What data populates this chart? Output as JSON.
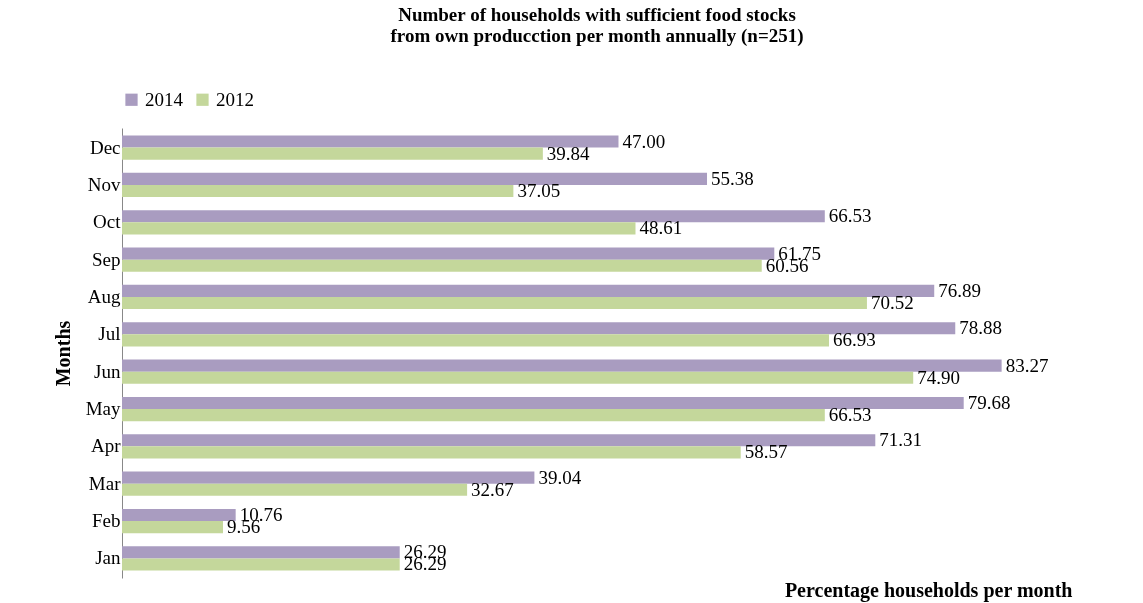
{
  "chart_data": {
    "type": "bar",
    "orientation": "horizontal",
    "title": "Number of households with sufficient food stocks from own producction per month annually (n=251)",
    "xlabel": "Percentage households per month",
    "ylabel": "Months",
    "categories": [
      "Dec",
      "Nov",
      "Oct",
      "Sep",
      "Aug",
      "Jul",
      "Jun",
      "May",
      "Apr",
      "Mar",
      "Feb",
      "Jan"
    ],
    "series": [
      {
        "name": "2014",
        "color": "#a99cc0",
        "values": [
          47.0,
          55.38,
          66.53,
          61.75,
          76.89,
          78.88,
          83.27,
          79.68,
          71.31,
          39.04,
          10.76,
          26.29
        ],
        "value_labels": [
          "47.00",
          "55.38",
          "66.53",
          "61.75",
          "76.89",
          "78.88",
          "83.27",
          "79.68",
          "71.31",
          "39.04",
          "10.76",
          "26.29"
        ]
      },
      {
        "name": "2012",
        "color": "#c4d79b",
        "values": [
          39.84,
          37.05,
          48.61,
          60.56,
          70.52,
          66.93,
          74.9,
          66.53,
          58.57,
          32.67,
          9.56,
          26.29
        ],
        "value_labels": [
          "39.84",
          "37.05",
          "48.61",
          "60.56",
          "70.52",
          "66.93",
          "74.90",
          "66.53",
          "58.57",
          "32.67",
          "9.56",
          "26.29"
        ]
      }
    ],
    "tick_labels": "y",
    "legend": "top"
  }
}
